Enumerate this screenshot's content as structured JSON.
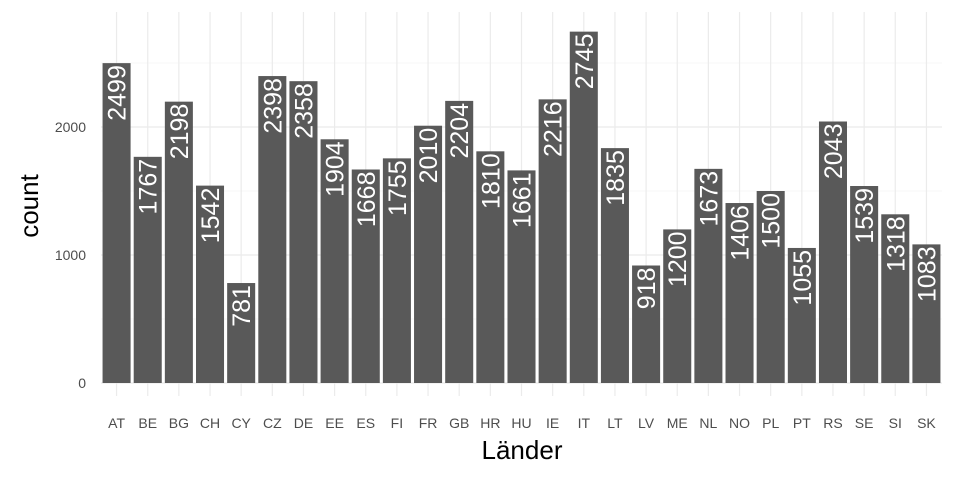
{
  "chart_data": {
    "type": "bar",
    "xlabel": "Länder",
    "ylabel": "count",
    "ylim": [
      0,
      2900
    ],
    "yticks": [
      0,
      1000,
      2000
    ],
    "grid": true,
    "legend": "none",
    "bar_color": "#595959",
    "background": "#ffffff",
    "categories": [
      "AT",
      "BE",
      "BG",
      "CH",
      "CY",
      "CZ",
      "DE",
      "EE",
      "ES",
      "FI",
      "FR",
      "GB",
      "HR",
      "HU",
      "IE",
      "IT",
      "LT",
      "LV",
      "ME",
      "NL",
      "NO",
      "PL",
      "PT",
      "RS",
      "SE",
      "SI",
      "SK"
    ],
    "values": [
      2499,
      1767,
      2198,
      1542,
      781,
      2398,
      2358,
      1904,
      1668,
      1755,
      2010,
      2204,
      1810,
      1661,
      2216,
      2745,
      1835,
      918,
      1200,
      1673,
      1406,
      1500,
      1055,
      2043,
      1539,
      1318,
      1083
    ]
  }
}
